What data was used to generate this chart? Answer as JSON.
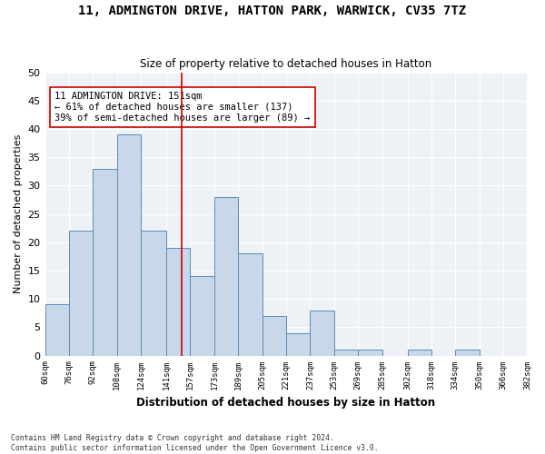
{
  "title": "11, ADMINGTON DRIVE, HATTON PARK, WARWICK, CV35 7TZ",
  "subtitle": "Size of property relative to detached houses in Hatton",
  "xlabel": "Distribution of detached houses by size in Hatton",
  "ylabel": "Number of detached properties",
  "bar_values": [
    9,
    22,
    33,
    39,
    22,
    19,
    14,
    28,
    18,
    7,
    4,
    8,
    1,
    1,
    0,
    1,
    0,
    1,
    0,
    0
  ],
  "bin_labels": [
    "60sqm",
    "76sqm",
    "92sqm",
    "108sqm",
    "124sqm",
    "141sqm",
    "157sqm",
    "173sqm",
    "189sqm",
    "205sqm",
    "221sqm",
    "237sqm",
    "253sqm",
    "269sqm",
    "285sqm",
    "302sqm",
    "318sqm",
    "334sqm",
    "350sqm",
    "366sqm",
    "382sqm"
  ],
  "bar_edges": [
    60,
    76,
    92,
    108,
    124,
    141,
    157,
    173,
    189,
    205,
    221,
    237,
    253,
    269,
    285,
    302,
    318,
    334,
    350,
    366,
    382
  ],
  "property_size": 151,
  "annotation_text_line1": "11 ADMINGTON DRIVE: 151sqm",
  "annotation_text_line2": "← 61% of detached houses are smaller (137)",
  "annotation_text_line3": "39% of semi-detached houses are larger (89) →",
  "bar_color": "#c8d8ea",
  "bar_edge_color": "#5b8db8",
  "line_color": "#cc0000",
  "annotation_box_edge_color": "#cc0000",
  "background_color": "#eef2f7",
  "grid_color": "#ffffff",
  "ylim": [
    0,
    50
  ],
  "yticks": [
    0,
    5,
    10,
    15,
    20,
    25,
    30,
    35,
    40,
    45,
    50
  ],
  "footer_line1": "Contains HM Land Registry data © Crown copyright and database right 2024.",
  "footer_line2": "Contains public sector information licensed under the Open Government Licence v3.0."
}
